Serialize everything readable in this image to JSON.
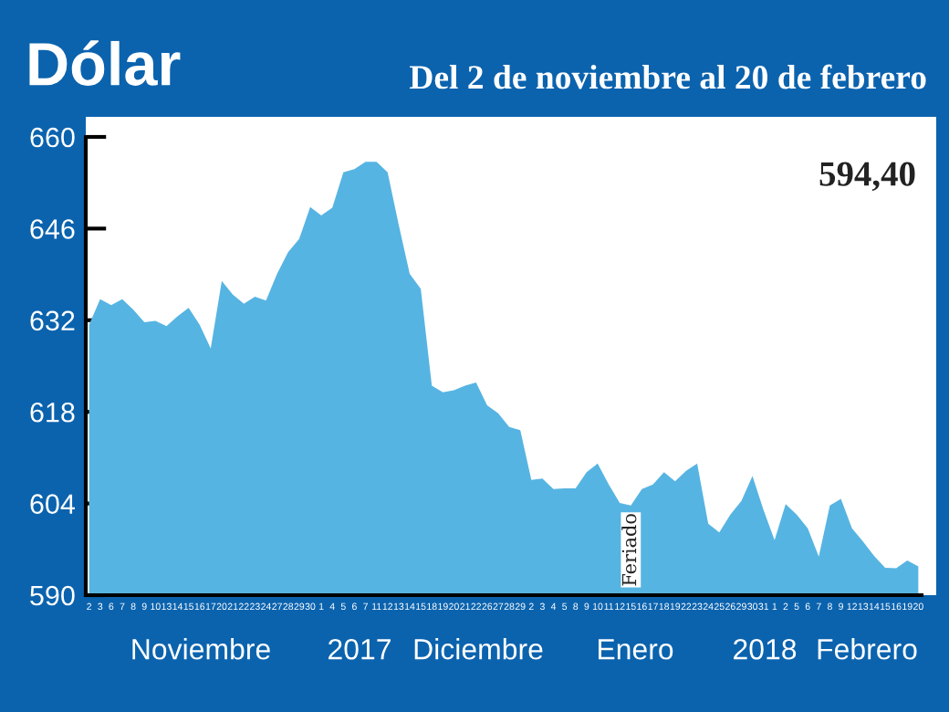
{
  "chart_data": {
    "type": "area",
    "title": "Dólar",
    "subtitle": "Del 2 de noviembre al 20 de febrero",
    "categories": [
      "2",
      "3",
      "6",
      "7",
      "8",
      "9",
      "10",
      "13",
      "14",
      "15",
      "16",
      "17",
      "20",
      "21",
      "22",
      "23",
      "24",
      "27",
      "28",
      "29",
      "30",
      "1",
      "4",
      "5",
      "6",
      "7",
      "11",
      "12",
      "13",
      "14",
      "15",
      "18",
      "19",
      "20",
      "21",
      "22",
      "26",
      "27",
      "28",
      "29",
      "2",
      "3",
      "4",
      "5",
      "8",
      "9",
      "10",
      "11",
      "12",
      "15",
      "16",
      "17",
      "18",
      "19",
      "22",
      "23",
      "24",
      "25",
      "26",
      "29",
      "30",
      "31",
      "1",
      "2",
      "5",
      "6",
      "7",
      "8",
      "9",
      "12",
      "13",
      "14",
      "15",
      "16",
      "19",
      "20"
    ],
    "series": [
      {
        "color": "#56b4e2",
        "values": [
          631.3,
          635.2,
          634.3,
          635.2,
          633.6,
          631.7,
          631.9,
          631.1,
          632.6,
          633.9,
          631.3,
          627.7,
          638,
          635.9,
          634.5,
          635.6,
          635,
          639.1,
          642.4,
          644.4,
          649.3,
          648,
          649.2,
          654.6,
          655.1,
          656.2,
          656.2,
          654.6,
          646.6,
          639.1,
          636.8,
          622,
          621,
          621.3,
          622,
          622.5,
          619,
          617.8,
          615.7,
          615.2,
          607.6,
          607.8,
          606.2,
          606.3,
          606.3,
          608.8,
          610.1,
          606.9,
          604.1,
          603.7,
          606.2,
          606.9,
          608.8,
          607.4,
          609,
          610.1,
          600.9,
          599.6,
          602.3,
          604.4,
          608.2,
          603,
          598.4,
          603.9,
          602.3,
          600.2,
          595.9,
          603.7,
          604.7,
          600.2,
          598.2,
          596,
          594.2,
          594.1,
          595.3,
          594.4
        ]
      }
    ],
    "ylim": [
      590,
      660
    ],
    "yticks": [
      590,
      604,
      618,
      632,
      646,
      660
    ],
    "annotations": [
      "594,40",
      "Feriado",
      "Noviembre",
      "2017",
      "Diciembre",
      "Enero",
      "2018",
      "Febrero"
    ]
  }
}
